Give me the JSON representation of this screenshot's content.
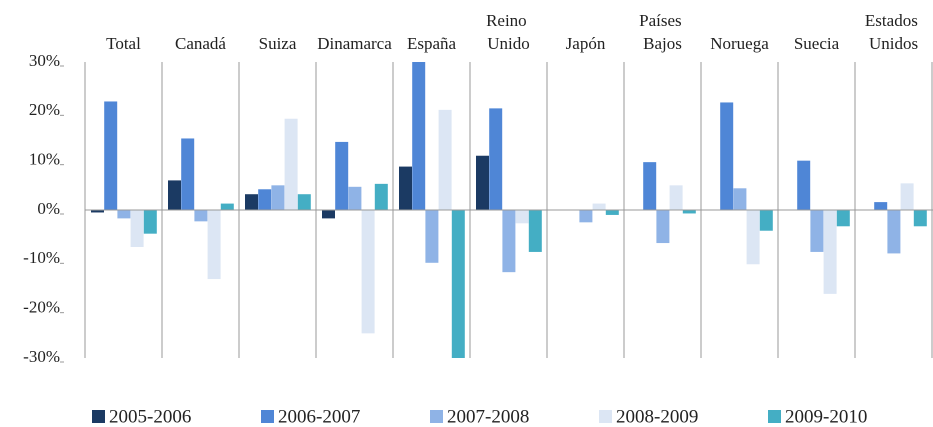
{
  "chart_data": {
    "type": "bar",
    "categories": [
      "Total",
      "Canadá",
      "Suiza",
      "Dinamarca",
      "España",
      "Reino Unido",
      "Japón",
      "Países Bajos",
      "Noruega",
      "Suecia",
      "Estados Unidos"
    ],
    "series": [
      {
        "name": "2005-2006",
        "color": "#1b3a63",
        "values": [
          -0.5,
          6,
          3.2,
          -1.7,
          8.8,
          11,
          0,
          0,
          0,
          0,
          0
        ]
      },
      {
        "name": "2006-2007",
        "color": "#4f86d6",
        "values": [
          22,
          14.5,
          4.2,
          13.8,
          30,
          20.6,
          0,
          9.7,
          21.8,
          10,
          1.6
        ]
      },
      {
        "name": "2007-2008",
        "color": "#8fb3e6",
        "values": [
          -1.7,
          -2.3,
          5,
          4.7,
          -10.7,
          -12.6,
          -2.5,
          -6.7,
          4.4,
          -8.5,
          -8.8
        ]
      },
      {
        "name": "2008-2009",
        "color": "#dce6f4",
        "values": [
          -7.5,
          -14,
          18.5,
          -25,
          20.3,
          -2.7,
          1.3,
          5,
          -11,
          -17,
          5.4
        ]
      },
      {
        "name": "2009-2010",
        "color": "#44aec4",
        "values": [
          -4.8,
          1.3,
          3.2,
          5.3,
          -30,
          -8.5,
          -1,
          -0.7,
          -4.2,
          -3.3,
          -3.3
        ]
      }
    ],
    "ylim": [
      -30,
      30
    ],
    "yticks": [
      {
        "value": -30,
        "label": "-30%"
      },
      {
        "value": -20,
        "label": "-20%"
      },
      {
        "value": -10,
        "label": "-10%"
      },
      {
        "value": 0,
        "label": "0%"
      },
      {
        "value": 10,
        "label": "10%"
      },
      {
        "value": 20,
        "label": "20%"
      },
      {
        "value": 30,
        "label": "30%"
      }
    ]
  }
}
